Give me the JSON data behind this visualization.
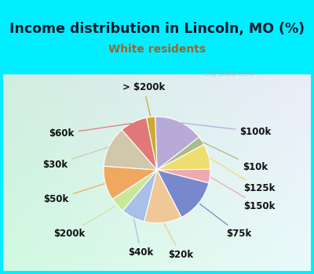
{
  "title": "Income distribution in Lincoln, MO (%)",
  "subtitle": "White residents",
  "title_color": "#1a1a2e",
  "subtitle_color": "#996633",
  "background_outer": "#00eeff",
  "background_inner_tl": "#d8f0e8",
  "background_inner_br": "#e8f8f8",
  "watermark": "City-Data.com",
  "slices": [
    {
      "label": "$100k",
      "value": 14.5,
      "color": "#b8aad8"
    },
    {
      "label": "$10k",
      "value": 2.5,
      "color": "#a8bc88"
    },
    {
      "label": "$125k",
      "value": 7.5,
      "color": "#eede70"
    },
    {
      "label": "$150k",
      "value": 4.0,
      "color": "#f0a8b0"
    },
    {
      "label": "$75k",
      "value": 13.0,
      "color": "#7888cc"
    },
    {
      "label": "$20k",
      "value": 11.0,
      "color": "#f0c898"
    },
    {
      "label": "$40k",
      "value": 7.0,
      "color": "#a8c0e8"
    },
    {
      "label": "$200k",
      "value": 4.5,
      "color": "#c8e898"
    },
    {
      "label": "$50k",
      "value": 10.0,
      "color": "#f0a860"
    },
    {
      "label": "$30k",
      "value": 12.0,
      "color": "#d0c8a8"
    },
    {
      "label": "$60k",
      "value": 8.0,
      "color": "#e07878"
    },
    {
      "label": "> $200k",
      "value": 2.5,
      "color": "#ccaa30"
    }
  ],
  "label_fontsize": 8.5,
  "title_fontsize": 12.5,
  "subtitle_fontsize": 10
}
